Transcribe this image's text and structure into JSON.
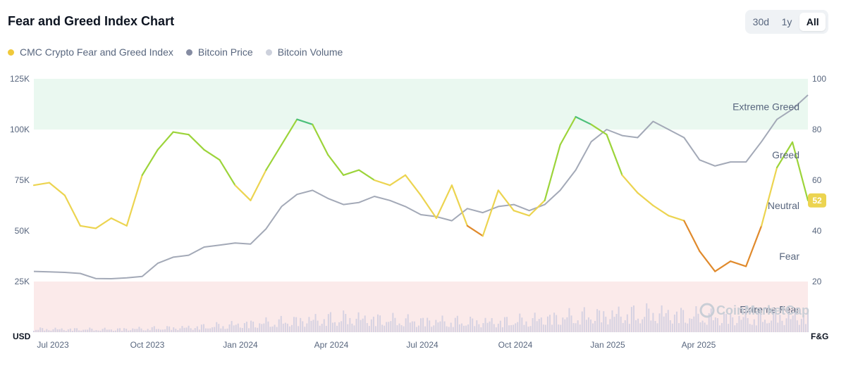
{
  "header": {
    "title": "Fear and Greed Index Chart",
    "ranges": [
      {
        "label": "30d",
        "active": false
      },
      {
        "label": "1y",
        "active": false
      },
      {
        "label": "All",
        "active": true
      }
    ]
  },
  "legend": [
    {
      "label": "CMC Crypto Fear and Greed Index",
      "color": "#f0c93a"
    },
    {
      "label": "Bitcoin Price",
      "color": "#858ca2"
    },
    {
      "label": "Bitcoin Volume",
      "color": "#cdd1dc"
    }
  ],
  "watermark": "CoinMarketCap",
  "chart_data": {
    "type": "line",
    "x_ticks": [
      "Jul 2023",
      "Oct 2023",
      "Jan 2024",
      "Apr 2024",
      "Jul 2024",
      "Oct 2024",
      "Jan 2025",
      "Apr 2025"
    ],
    "left_axis": {
      "unit": "USD",
      "ticks": [
        "25K",
        "50K",
        "75K",
        "100K",
        "125K"
      ],
      "range": [
        0,
        125000
      ]
    },
    "right_axis": {
      "unit": "F&G",
      "ticks": [
        "20",
        "40",
        "60",
        "80",
        "100"
      ],
      "range": [
        0,
        100
      ]
    },
    "zones": {
      "extreme_greed": {
        "label": "Extreme Greed",
        "from": 80,
        "to": 100,
        "color": "#eaf8f0"
      },
      "greed": {
        "label": "Greed",
        "value": 70
      },
      "neutral": {
        "label": "Neutral",
        "value": 50
      },
      "fear": {
        "label": "Fear",
        "value": 30
      },
      "extreme_fear": {
        "label": "Extreme Fear",
        "from": 0,
        "to": 20,
        "color": "#fbeaea"
      }
    },
    "current_value": "52",
    "series": [
      {
        "name": "CMC Crypto Fear and Greed Index",
        "axis": "right",
        "t": [
          0,
          0.02,
          0.04,
          0.06,
          0.08,
          0.1,
          0.12,
          0.14,
          0.16,
          0.18,
          0.2,
          0.22,
          0.24,
          0.26,
          0.28,
          0.3,
          0.32,
          0.34,
          0.36,
          0.38,
          0.4,
          0.42,
          0.44,
          0.46,
          0.48,
          0.5,
          0.52,
          0.54,
          0.56,
          0.58,
          0.6,
          0.62,
          0.64,
          0.66,
          0.68,
          0.7,
          0.72,
          0.74,
          0.76,
          0.78,
          0.8,
          0.82,
          0.84,
          0.86,
          0.88,
          0.9,
          0.92,
          0.94,
          0.96,
          0.98,
          1
        ],
        "values": [
          58,
          59,
          54,
          42,
          41,
          45,
          42,
          62,
          72,
          79,
          78,
          72,
          68,
          58,
          52,
          64,
          74,
          84,
          82,
          70,
          62,
          64,
          60,
          58,
          62,
          54,
          45,
          58,
          42,
          38,
          56,
          48,
          46,
          52,
          74,
          85,
          82,
          78,
          62,
          55,
          50,
          46,
          44,
          32,
          24,
          28,
          26,
          42,
          65,
          75,
          52
        ]
      },
      {
        "name": "Bitcoin Price",
        "axis": "left",
        "t": [
          0,
          0.02,
          0.04,
          0.06,
          0.08,
          0.1,
          0.12,
          0.14,
          0.16,
          0.18,
          0.2,
          0.22,
          0.24,
          0.26,
          0.28,
          0.3,
          0.32,
          0.34,
          0.36,
          0.38,
          0.4,
          0.42,
          0.44,
          0.46,
          0.48,
          0.5,
          0.52,
          0.54,
          0.56,
          0.58,
          0.6,
          0.62,
          0.64,
          0.66,
          0.68,
          0.7,
          0.72,
          0.74,
          0.76,
          0.78,
          0.8,
          0.82,
          0.84,
          0.86,
          0.88,
          0.9,
          0.92,
          0.94,
          0.96,
          0.98,
          1
        ],
        "values": [
          30000,
          29800,
          29500,
          29000,
          26500,
          26400,
          26800,
          27500,
          34000,
          37000,
          38000,
          42000,
          43000,
          44000,
          43500,
          51000,
          62000,
          68000,
          70000,
          66000,
          63000,
          64000,
          67000,
          65000,
          62000,
          58000,
          57000,
          55000,
          61000,
          59000,
          62000,
          63000,
          60000,
          63000,
          70000,
          80000,
          94000,
          100000,
          97000,
          96000,
          104000,
          100000,
          96000,
          85000,
          82000,
          84000,
          84000,
          94000,
          105000,
          110000,
          117000
        ]
      },
      {
        "name": "Bitcoin Volume",
        "axis": "left",
        "t": [
          0,
          0.1,
          0.2,
          0.3,
          0.4,
          0.5,
          0.6,
          0.7,
          0.8,
          0.9,
          1
        ],
        "values": [
          2000,
          1800,
          3000,
          6000,
          9000,
          7000,
          6500,
          10000,
          12000,
          9000,
          10000
        ]
      }
    ]
  }
}
